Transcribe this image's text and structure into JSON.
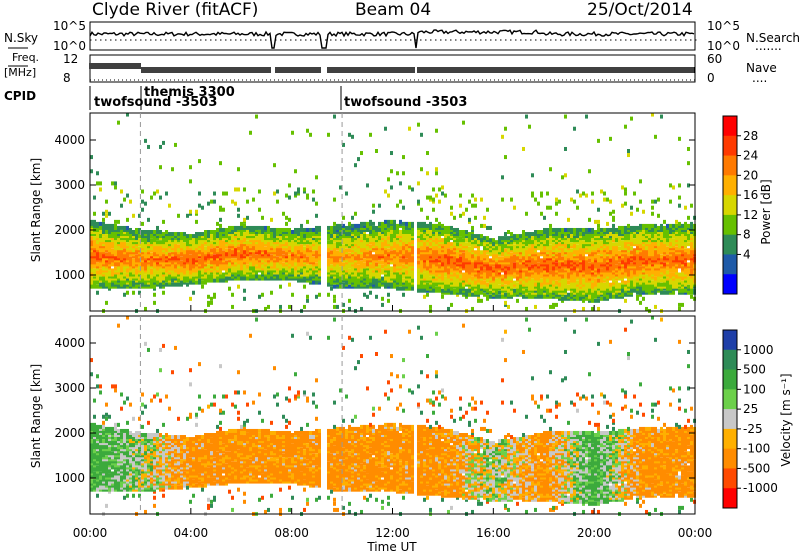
{
  "header": {
    "station": "Clyde River (fitACF)",
    "beam": "Beam 04",
    "date": "25/Oct/2014"
  },
  "sky_panel": {
    "left_label": "N.Sky",
    "right_label": "N.Search",
    "right_dots": ".......",
    "left_ticks": [
      "10^5",
      "10^0"
    ],
    "right_ticks": [
      "10^5",
      "10^0"
    ]
  },
  "freq_panel": {
    "left_label_1": "Freq.",
    "left_label_2": "[MHz]",
    "left_ticks": [
      "12",
      "8"
    ],
    "right_label": "Nave",
    "right_dots": "....",
    "right_ticks": [
      "60",
      "0"
    ]
  },
  "cpid": {
    "label": "CPID",
    "segments": [
      "twofsound -3503",
      "themis 3300",
      "twofsound -3503"
    ]
  },
  "x_axis": {
    "label": "Time UT",
    "ticks": [
      "00:00",
      "04:00",
      "08:00",
      "12:00",
      "16:00",
      "20:00",
      "00:00"
    ]
  },
  "power_colorbar": {
    "label": "Power [dB]",
    "ticks": [
      "28",
      "24",
      "20",
      "16",
      "12",
      "8",
      "4"
    ],
    "colors": [
      "#ff0000",
      "#ff3a00",
      "#ff7a00",
      "#ffb000",
      "#d7d700",
      "#66c000",
      "#2e8b57",
      "#1e5aa8",
      "#0000ff"
    ]
  },
  "velocity_colorbar": {
    "label": "Velocity [m s⁻¹]",
    "ticks": [
      "1000",
      "500",
      "100",
      "25",
      "-25",
      "-100",
      "-500",
      "-1000"
    ],
    "colors": [
      "#1f3fa8",
      "#2e8b57",
      "#3caa3c",
      "#6cd04a",
      "#c8c8c8",
      "#ffb000",
      "#ff8c00",
      "#ff4a00",
      "#ff0000"
    ]
  },
  "chart_data": [
    {
      "type": "heatmap",
      "title": "Power",
      "ylabel": "Slant Range [km]",
      "xlabel": "",
      "xlim": [
        0,
        24
      ],
      "ylim": [
        200,
        4600
      ],
      "yticks": [
        "1000",
        "2000",
        "3000",
        "4000"
      ],
      "colorbar": "Power [dB]",
      "gaps_hours": [
        [
          7.2,
          7.3
        ],
        [
          9.2,
          9.4
        ],
        [
          12.9,
          13.0
        ]
      ],
      "main_band": {
        "x": [
          0,
          2,
          4,
          6,
          8,
          10,
          12,
          14,
          16,
          18,
          20,
          22,
          24
        ],
        "low_km": [
          700,
          700,
          800,
          900,
          900,
          700,
          700,
          600,
          500,
          500,
          400,
          600,
          600
        ],
        "high_km": [
          2200,
          2000,
          1900,
          2100,
          2000,
          2100,
          2200,
          2100,
          1800,
          2000,
          2000,
          2100,
          2100
        ],
        "peak_db": [
          28,
          26,
          28,
          28,
          26,
          24,
          26,
          28,
          28,
          28,
          28,
          28,
          28
        ]
      }
    },
    {
      "type": "heatmap",
      "title": "Velocity",
      "ylabel": "Slant Range [km]",
      "xlabel": "Time UT",
      "xlim": [
        0,
        24
      ],
      "ylim": [
        200,
        4600
      ],
      "yticks": [
        "1000",
        "2000",
        "3000",
        "4000"
      ],
      "colorbar": "Velocity [m s⁻¹]",
      "dominant_velocity_ms": {
        "x": [
          0,
          2,
          4,
          6,
          8,
          10,
          12,
          14,
          16,
          18,
          20,
          22,
          24
        ],
        "values": [
          100,
          25,
          -100,
          -100,
          -100,
          -100,
          -100,
          -100,
          25,
          -100,
          100,
          -100,
          -100
        ]
      }
    }
  ]
}
